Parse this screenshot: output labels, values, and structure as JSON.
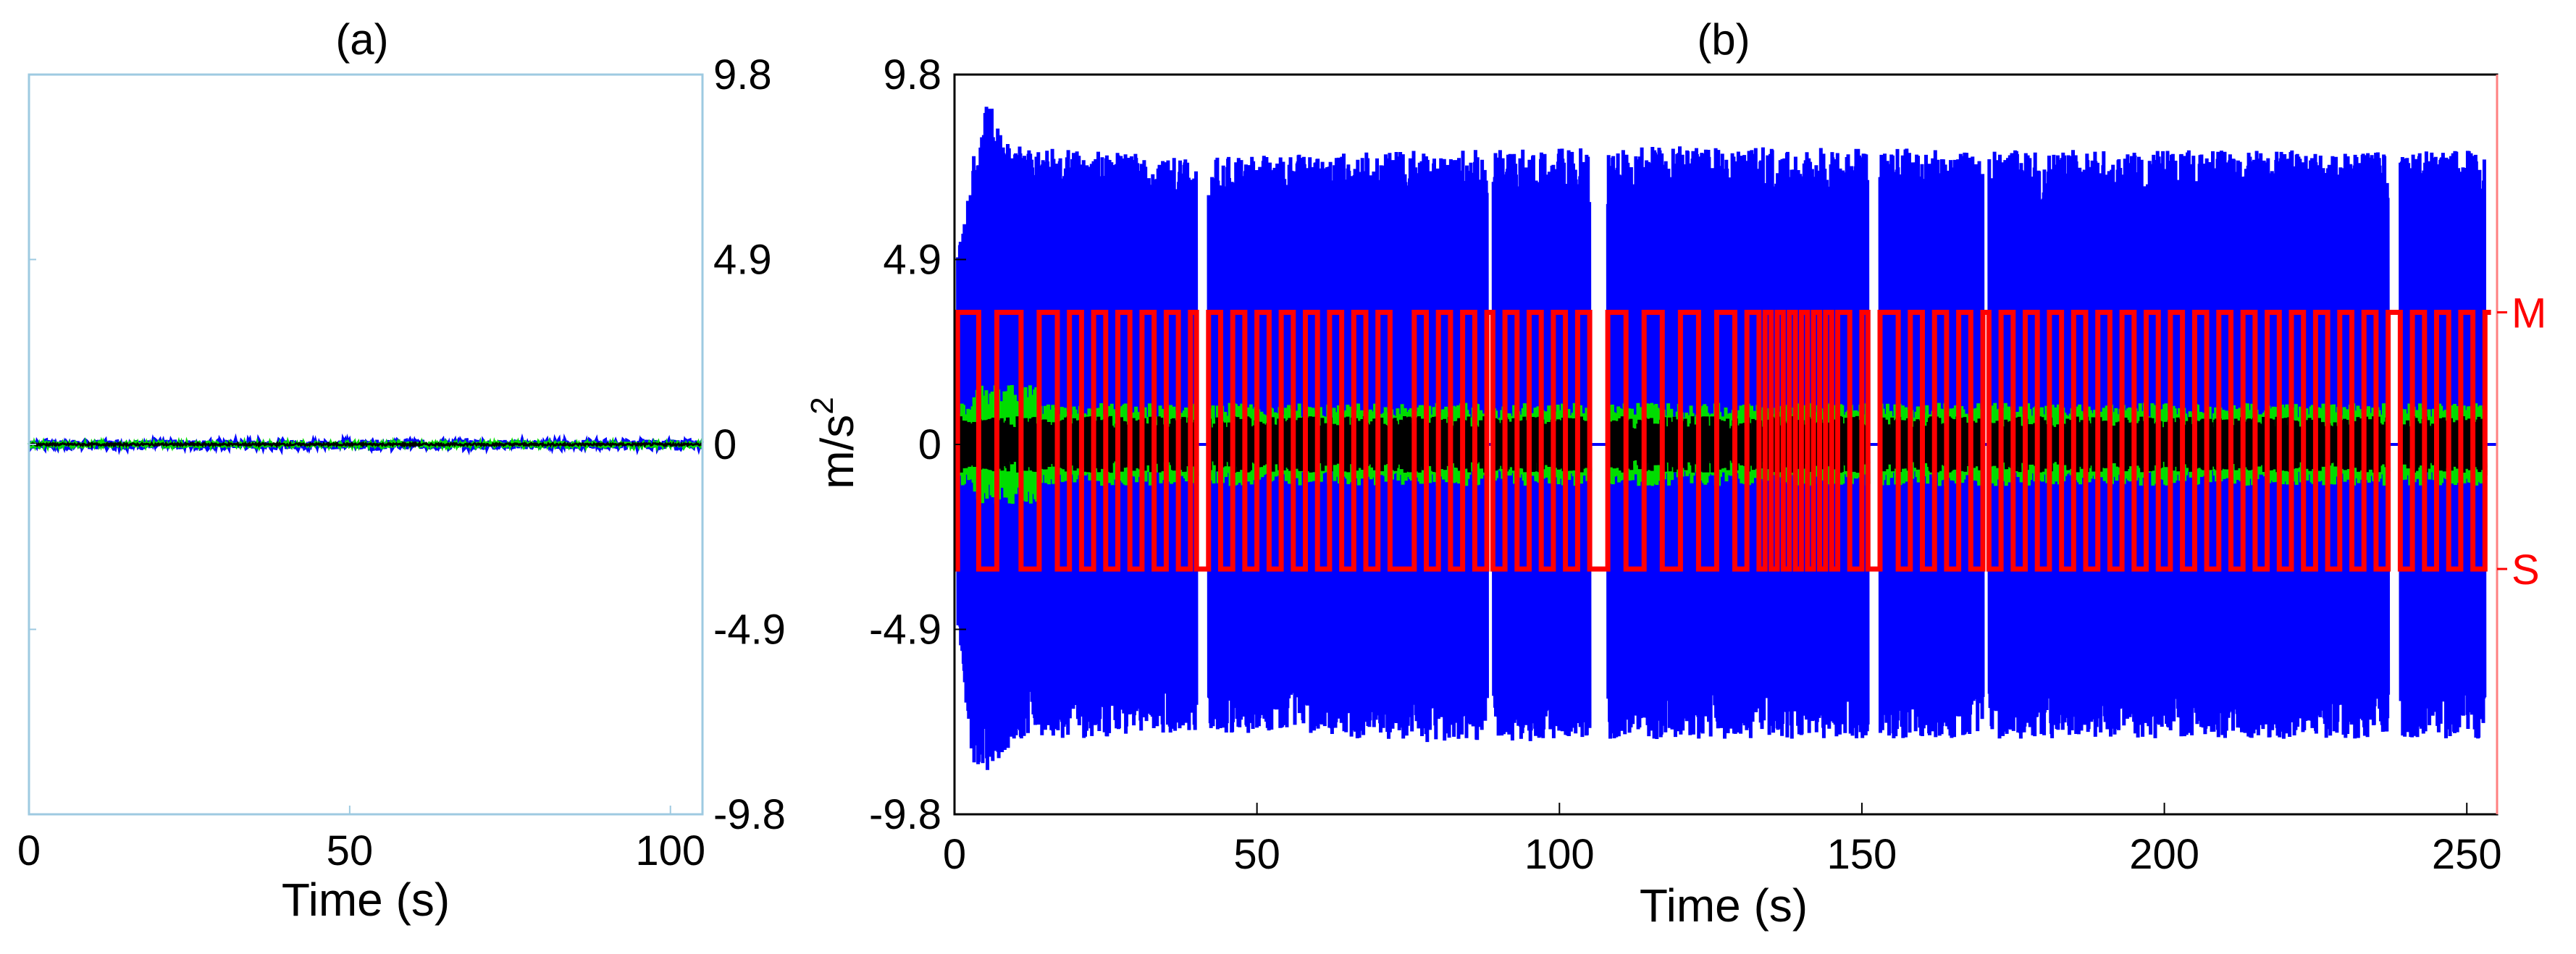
{
  "colors": {
    "acceleration_main": "#0000ff",
    "acceleration_secondary": "#00dd00",
    "acceleration_inner": "#000000",
    "mode": "#ff0000",
    "panel_a_frame": "#9ecae1",
    "panel_b_right_axis": "#ff8080"
  },
  "chart_data": [
    {
      "panel": "(a)",
      "type": "line",
      "title": "(a)",
      "xlabel": "Time (s)",
      "ylabel": "",
      "xlim": [
        0,
        105
      ],
      "ylim": [
        -9.8,
        9.8
      ],
      "x_ticks": [
        "0",
        "50",
        "100"
      ],
      "y_ticks": [
        "9.8",
        "4.9",
        "0",
        "-4.9",
        "-9.8"
      ],
      "y_axis_side": "right",
      "series": [
        {
          "color": "#0000ff",
          "amplitude": 0.12,
          "note_values": "flat trace around 0"
        },
        {
          "color": "#00dd00",
          "amplitude": 0.06
        },
        {
          "color": "#000000",
          "amplitude": 0.03
        }
      ]
    },
    {
      "panel": "(b)",
      "type": "line",
      "title": "(b)",
      "xlabel": "Time (s)",
      "ylabel": "m/s",
      "ylabel_superscript": "2",
      "xlim": [
        0,
        255
      ],
      "ylim": [
        -9.8,
        9.8
      ],
      "x_ticks": [
        "0",
        "50",
        "100",
        "150",
        "200",
        "250"
      ],
      "y_ticks": [
        "9.8",
        "4.9",
        "0",
        "-4.9",
        "-9.8"
      ],
      "right_axis_labels": [
        "M",
        "S"
      ],
      "mode_levels": {
        "M": 3.5,
        "S": -3.3
      },
      "active_intervals": [
        [
          0.5,
          40
        ],
        [
          42,
          88
        ],
        [
          89,
          105
        ],
        [
          108,
          151
        ],
        [
          153,
          170
        ],
        [
          171,
          237
        ],
        [
          239,
          253
        ]
      ],
      "envelope_points": [
        {
          "t": 0,
          "max": 4.5,
          "min": -4.5
        },
        {
          "t": 3,
          "max": 7.5,
          "min": -8.5
        },
        {
          "t": 5,
          "max": 9.2,
          "min": -8.8
        },
        {
          "t": 10,
          "max": 8.0,
          "min": -7.8
        },
        {
          "t": 20,
          "max": 7.8,
          "min": -7.8
        },
        {
          "t": 40,
          "max": 7.6,
          "min": -7.6
        },
        {
          "t": 80,
          "max": 7.8,
          "min": -7.9
        },
        {
          "t": 120,
          "max": 7.9,
          "min": -7.8
        },
        {
          "t": 180,
          "max": 7.8,
          "min": -7.8
        },
        {
          "t": 250,
          "max": 7.8,
          "min": -7.8
        }
      ],
      "mode_switch_times": [
        0.5,
        4,
        7,
        11,
        14,
        17,
        19,
        21,
        23,
        25,
        27,
        29,
        31,
        33,
        35,
        37,
        39,
        40,
        42,
        44,
        46,
        48,
        50,
        52,
        54,
        56,
        58,
        60,
        62,
        64,
        66,
        68,
        70,
        72,
        76,
        78,
        80,
        82,
        84,
        86,
        88,
        89,
        91,
        93,
        95,
        97,
        99,
        101,
        103,
        105,
        108,
        111,
        114,
        117,
        120,
        123,
        126,
        129,
        131,
        133,
        134,
        135,
        136,
        137,
        138,
        139,
        140,
        141,
        142,
        143,
        144,
        145,
        146,
        148,
        150,
        151,
        153,
        156,
        158,
        160,
        162,
        164,
        166,
        168,
        170,
        171,
        173,
        175,
        177,
        179,
        181,
        183,
        185,
        187,
        189,
        191,
        193,
        195,
        197,
        199,
        201,
        203,
        205,
        207,
        209,
        211,
        213,
        215,
        217,
        219,
        221,
        223,
        225,
        227,
        229,
        231,
        233,
        235,
        237,
        239,
        241,
        243,
        245,
        247,
        249,
        251,
        253
      ]
    }
  ]
}
